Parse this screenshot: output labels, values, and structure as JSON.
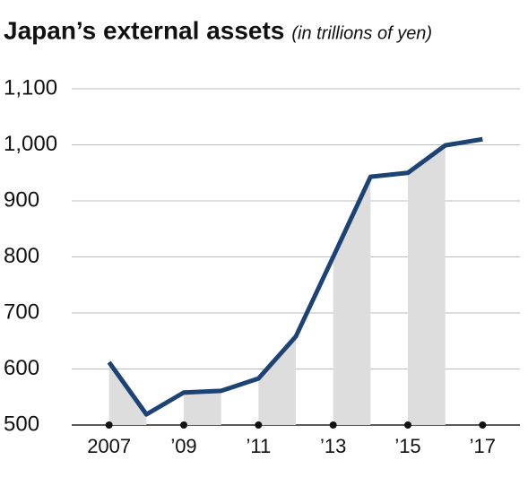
{
  "chart_data": {
    "type": "line",
    "title": "Japan’s external assets",
    "subtitle": "(in trillions of yen)",
    "x": [
      2007,
      2008,
      2009,
      2010,
      2011,
      2012,
      2013,
      2014,
      2015,
      2016,
      2017
    ],
    "series": [
      {
        "color": "#1d4274",
        "values": [
          612,
          519,
          558,
          561,
          583,
          658,
          800,
          943,
          950,
          999,
          1010
        ]
      }
    ],
    "xlim": [
      2006,
      2018
    ],
    "xticks": [
      {
        "value": 2007,
        "label": "2007"
      },
      {
        "value": 2009,
        "label": "’09"
      },
      {
        "value": 2011,
        "label": "’11"
      },
      {
        "value": 2013,
        "label": "’13"
      },
      {
        "value": 2015,
        "label": "’15"
      },
      {
        "value": 2017,
        "label": "’17"
      }
    ],
    "ylim": [
      500,
      1100
    ],
    "yticks": [
      500,
      600,
      700,
      800,
      900,
      {
        "value": 1000,
        "label": "1,000"
      },
      {
        "value": 1100,
        "label": "1,100"
      }
    ],
    "grid": true
  }
}
